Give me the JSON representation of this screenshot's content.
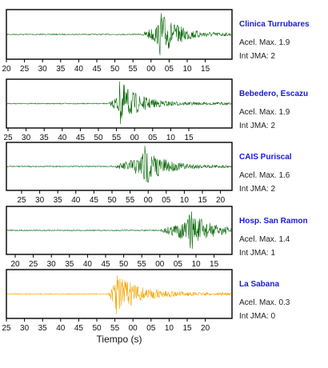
{
  "chart_data": [
    {
      "type": "line",
      "station": "Clinica Turrubares",
      "accel_text": "Acel. Max. 1.9",
      "jma_text": "Int JMA: 2",
      "color": "#0a6b0a",
      "x_ticks": [
        "20",
        "25",
        "30",
        "35",
        "40",
        "45",
        "50",
        "55",
        "00",
        "05",
        "10",
        "15"
      ],
      "onset_tick_index": 7.5,
      "peak_tick_index": 8.5,
      "amplitude": 1.9
    },
    {
      "type": "line",
      "station": "Bebedero, Escazu",
      "accel_text": "Acel. Max. 1.9",
      "jma_text": "Int JMA: 2",
      "color": "#0a6b0a",
      "x_ticks": [
        "25",
        "30",
        "35",
        "40",
        "45",
        "50",
        "55",
        "00",
        "05",
        "10",
        "15"
      ],
      "onset_tick_index": 5.6,
      "peak_tick_index": 6.2,
      "amplitude": 1.9
    },
    {
      "type": "line",
      "station": "CAIS Puriscal",
      "accel_text": "Acel. Max. 1.6",
      "jma_text": "Int JMA: 2",
      "color": "#0a6b0a",
      "x_ticks": [
        "25",
        "30",
        "35",
        "40",
        "45",
        "50",
        "55",
        "00",
        "05",
        "10",
        "15",
        "20"
      ],
      "onset_tick_index": 5.2,
      "peak_tick_index": 6.7,
      "amplitude": 1.6
    },
    {
      "type": "line",
      "station": "Hosp. San Ramon",
      "accel_text": "Acel. Max. 1.4",
      "jma_text": "Int JMA: 1",
      "color": "#0a6b0a",
      "x_ticks": [
        "20",
        "25",
        "30",
        "35",
        "40",
        "45",
        "50",
        "55",
        "00",
        "05",
        "10",
        "15"
      ],
      "onset_tick_index": 8.0,
      "peak_tick_index": 9.6,
      "amplitude": 1.4
    },
    {
      "type": "line",
      "station": "La Sabana",
      "accel_text": "Acel. Max. 0.3",
      "jma_text": "Int JMA: 0",
      "color": "#f5a500",
      "x_ticks": [
        "25",
        "30",
        "35",
        "40",
        "45",
        "50",
        "55",
        "00",
        "05",
        "10",
        "15",
        "20"
      ],
      "onset_tick_index": 5.6,
      "peak_tick_index": 6.0,
      "amplitude": 0.3
    }
  ],
  "xlabel": "Tiempo (s)"
}
